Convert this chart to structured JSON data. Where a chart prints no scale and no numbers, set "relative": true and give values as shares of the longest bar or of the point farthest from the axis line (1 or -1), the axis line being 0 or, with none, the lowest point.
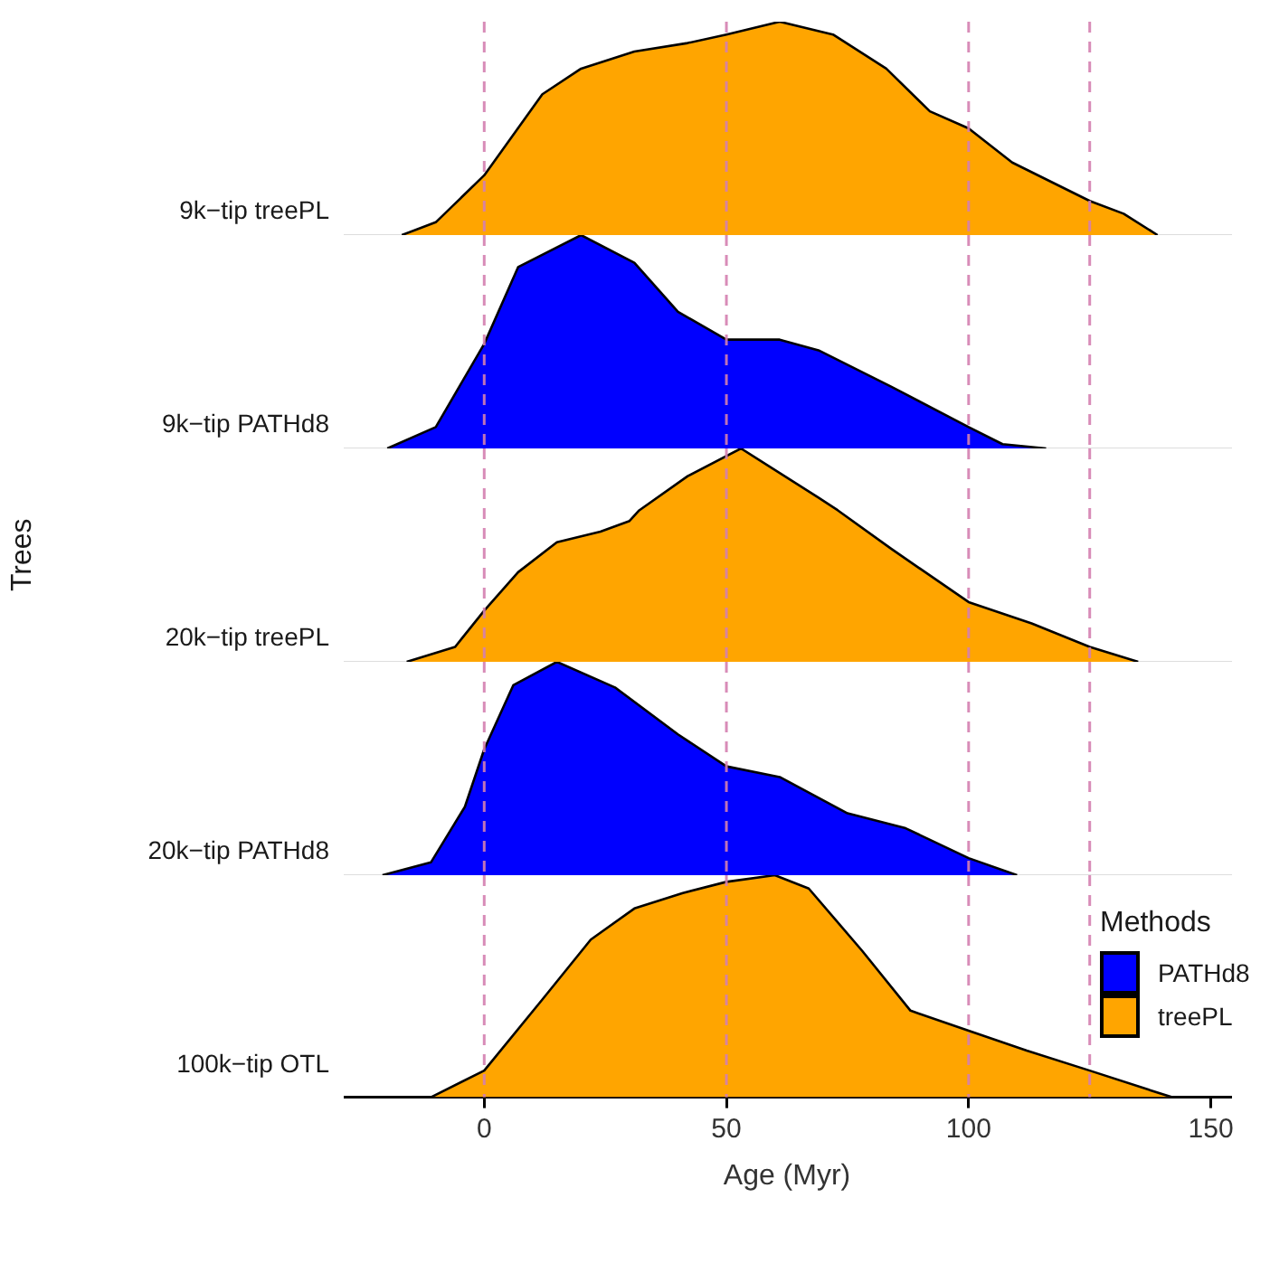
{
  "chart_data": [
    {
      "type": "area",
      "ylabel": "9k−tip treePL",
      "relative": true,
      "xlim": [
        -29,
        154
      ],
      "xticks": [
        0,
        50,
        100,
        150
      ],
      "tick_labels": false,
      "legend": "bottom right",
      "legend_title": "Methods",
      "ref_lines": [
        {
          "axis": "x",
          "value": 0,
          "color": "#d47fb0",
          "line_style": "dashed"
        },
        {
          "axis": "x",
          "value": 50,
          "color": "#d47fb0",
          "line_style": "dashed"
        },
        {
          "axis": "x",
          "value": 100,
          "color": "#d47fb0",
          "line_style": "dashed"
        },
        {
          "axis": "x",
          "value": 125,
          "color": "#d47fb0",
          "line_style": "dashed"
        }
      ],
      "x": [
        -17,
        -10,
        0,
        12,
        20,
        31,
        42,
        50,
        61,
        72,
        83,
        92,
        100,
        109,
        125,
        132,
        139
      ],
      "series": [
        {
          "name": "treePL",
          "color": "#ffa500",
          "values": [
            0,
            0.06,
            0.28,
            0.66,
            0.78,
            0.86,
            0.9,
            0.94,
            1,
            0.94,
            0.78,
            0.58,
            0.5,
            0.34,
            0.16,
            0.1,
            0
          ]
        }
      ]
    },
    {
      "type": "area",
      "ylabel": "9k−tip PATHd8",
      "relative": true,
      "xlim": [
        -29,
        154
      ],
      "xticks": [
        0,
        50,
        100,
        150
      ],
      "tick_labels": false,
      "legend": false,
      "ref_lines": [
        {
          "axis": "x",
          "value": 0,
          "color": "#d47fb0",
          "line_style": "dashed"
        },
        {
          "axis": "x",
          "value": 50,
          "color": "#d47fb0",
          "line_style": "dashed"
        },
        {
          "axis": "x",
          "value": 100,
          "color": "#d47fb0",
          "line_style": "dashed"
        },
        {
          "axis": "x",
          "value": 125,
          "color": "#d47fb0",
          "line_style": "dashed"
        }
      ],
      "x": [
        -20,
        -10,
        0,
        7,
        20,
        31,
        40,
        50,
        61,
        69,
        84,
        100,
        107,
        116
      ],
      "series": [
        {
          "name": "PATHd8",
          "color": "#0000ff",
          "values": [
            0,
            0.1,
            0.49,
            0.85,
            1,
            0.87,
            0.64,
            0.51,
            0.51,
            0.46,
            0.29,
            0.1,
            0.02,
            0
          ]
        }
      ]
    },
    {
      "type": "area",
      "ylabel": "20k−tip treePL",
      "relative": true,
      "xlim": [
        -29,
        154
      ],
      "xticks": [
        0,
        50,
        100,
        150
      ],
      "tick_labels": false,
      "legend": false,
      "annotations": [
        "Trees"
      ],
      "ref_lines": [
        {
          "axis": "x",
          "value": 0,
          "color": "#d47fb0",
          "line_style": "dashed"
        },
        {
          "axis": "x",
          "value": 50,
          "color": "#d47fb0",
          "line_style": "dashed"
        },
        {
          "axis": "x",
          "value": 100,
          "color": "#d47fb0",
          "line_style": "dashed"
        },
        {
          "axis": "x",
          "value": 125,
          "color": "#d47fb0",
          "line_style": "dashed"
        }
      ],
      "x": [
        -16,
        -6,
        0,
        7,
        15,
        24,
        30,
        32,
        42,
        53,
        69,
        73,
        84,
        100,
        113,
        125,
        135
      ],
      "series": [
        {
          "name": "treePL",
          "color": "#ffa500",
          "values": [
            0,
            0.07,
            0.24,
            0.42,
            0.56,
            0.61,
            0.66,
            0.71,
            0.87,
            1,
            0.77,
            0.71,
            0.53,
            0.28,
            0.18,
            0.07,
            0
          ]
        }
      ]
    },
    {
      "type": "area",
      "ylabel": "20k−tip PATHd8",
      "relative": true,
      "xlim": [
        -29,
        154
      ],
      "xticks": [
        0,
        50,
        100,
        150
      ],
      "tick_labels": false,
      "legend": false,
      "ref_lines": [
        {
          "axis": "x",
          "value": 0,
          "color": "#d47fb0",
          "line_style": "dashed"
        },
        {
          "axis": "x",
          "value": 50,
          "color": "#d47fb0",
          "line_style": "dashed"
        },
        {
          "axis": "x",
          "value": 100,
          "color": "#d47fb0",
          "line_style": "dashed"
        },
        {
          "axis": "x",
          "value": 125,
          "color": "#d47fb0",
          "line_style": "dashed"
        }
      ],
      "x": [
        -21,
        -11,
        -4,
        0,
        6,
        15,
        27,
        40,
        50,
        61,
        75,
        87,
        100,
        110
      ],
      "series": [
        {
          "color": "#0000ff",
          "values": [
            0,
            0.06,
            0.32,
            0.59,
            0.89,
            1,
            0.88,
            0.66,
            0.51,
            0.46,
            0.29,
            0.22,
            0.08,
            0
          ]
        }
      ]
    },
    {
      "type": "area",
      "ylabel": "100k−tip OTL",
      "xlabel": "Age (Myr)",
      "relative": true,
      "xlim": [
        -29,
        154
      ],
      "xticks": [
        0,
        50,
        100,
        150
      ],
      "tick_labels": "x",
      "legend": false,
      "ref_lines": [
        {
          "axis": "x",
          "value": 0,
          "color": "#d47fb0",
          "line_style": "dashed"
        },
        {
          "axis": "x",
          "value": 50,
          "color": "#d47fb0",
          "line_style": "dashed"
        },
        {
          "axis": "x",
          "value": 100,
          "color": "#d47fb0",
          "line_style": "dashed"
        },
        {
          "axis": "x",
          "value": 125,
          "color": "#d47fb0",
          "line_style": "dashed"
        }
      ],
      "x": [
        -11,
        0,
        12,
        22,
        31,
        41,
        50,
        60,
        67,
        78,
        88,
        100,
        112,
        125,
        142
      ],
      "series": [
        {
          "name": "treePL",
          "color": "#ffa500",
          "values": [
            0,
            0.12,
            0.44,
            0.71,
            0.85,
            0.92,
            0.97,
            1,
            0.94,
            0.66,
            0.39,
            0.3,
            0.21,
            0.12,
            0
          ]
        }
      ]
    }
  ]
}
